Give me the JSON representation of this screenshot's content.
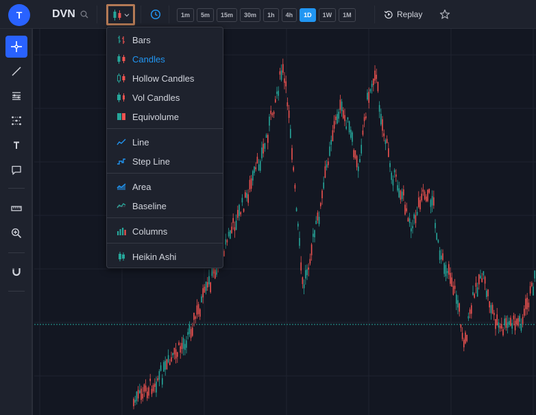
{
  "header": {
    "avatar_letter": "T",
    "symbol": "DVN",
    "intervals": [
      "1m",
      "5m",
      "15m",
      "30m",
      "1h",
      "4h",
      "1D",
      "1W",
      "1M"
    ],
    "active_interval": "1D",
    "replay_label": "Replay"
  },
  "chart_type_menu": {
    "items": [
      {
        "label": "Bars",
        "icon": "bars-icon"
      },
      {
        "label": "Candles",
        "icon": "candles-icon",
        "selected": true
      },
      {
        "label": "Hollow Candles",
        "icon": "hollow-candles-icon"
      },
      {
        "label": "Vol Candles",
        "icon": "vol-candles-icon"
      },
      {
        "label": "Equivolume",
        "icon": "equivolume-icon"
      },
      {
        "label": "Line",
        "icon": "line-chart-icon"
      },
      {
        "label": "Step Line",
        "icon": "step-line-icon"
      },
      {
        "label": "Area",
        "icon": "area-chart-icon"
      },
      {
        "label": "Baseline",
        "icon": "baseline-chart-icon"
      },
      {
        "label": "Columns",
        "icon": "columns-chart-icon"
      },
      {
        "label": "Heikin Ashi",
        "icon": "heikin-ashi-icon"
      }
    ]
  },
  "toolbar": {
    "tools": [
      "crosshair-icon",
      "trend-line-icon",
      "fib-retracement-icon",
      "pattern-icon",
      "text-icon",
      "comment-icon",
      "ruler-icon",
      "zoom-in-icon",
      "magnet-icon"
    ]
  },
  "colors": {
    "up": "#26a69a",
    "down": "#ef5350",
    "accent": "#2196f3",
    "background": "#131722"
  }
}
